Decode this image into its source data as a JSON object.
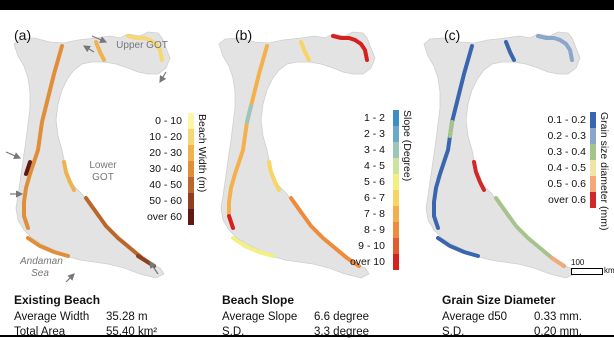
{
  "panels": [
    {
      "label": "(a)",
      "legend_title": "Beach Width (m)",
      "classes": [
        "0 - 10",
        "10 - 20",
        "20 - 30",
        "30 - 40",
        "40 - 50",
        "50 - 60",
        "over 60"
      ],
      "colors": [
        "#fdf6a8",
        "#f5d873",
        "#eeb24f",
        "#e08e3a",
        "#b9672a",
        "#8c4020",
        "#5e1a10"
      ],
      "stats_title": "Existing Beach",
      "stats": [
        {
          "key": "Average Width",
          "value": "35.28 m"
        },
        {
          "key": "Total Area",
          "value": "55.40 km²"
        }
      ],
      "map_labels": {
        "upper": "Upper GOT",
        "lower": "Lower GOT",
        "sea": "Andaman Sea"
      }
    },
    {
      "label": "(b)",
      "legend_title": "Slope (Degree)",
      "classes": [
        "1 - 2",
        "2 - 3",
        "3 - 4",
        "4 - 5",
        "5 - 6",
        "6 - 7",
        "7 - 8",
        "8 - 9",
        "9 - 10",
        "over 10"
      ],
      "colors": [
        "#3b8fc4",
        "#6aa9c7",
        "#9cc6b8",
        "#cde3a0",
        "#f3ef80",
        "#f8d463",
        "#f5b04e",
        "#ee8b3c",
        "#e35a2e",
        "#d62020"
      ],
      "stats_title": "Beach Slope",
      "stats": [
        {
          "key": "Average Slope",
          "value": "6.6 degree"
        },
        {
          "key": "S.D.",
          "value": "3.3 degree"
        }
      ]
    },
    {
      "label": "(c)",
      "legend_title": "Grain size diameter (mm)",
      "classes": [
        "0.1 - 0.2",
        "0.2 - 0.3",
        "0.3 - 0.4",
        "0.4 - 0.5",
        "0.5 - 0.6",
        "over 0.6"
      ],
      "colors": [
        "#3a66b0",
        "#8aa6cc",
        "#a7c38c",
        "#f0e4a8",
        "#f3a77a",
        "#d2282a"
      ],
      "stats_title": "Grain Size Diameter",
      "stats": [
        {
          "key": "Average d50",
          "value": "0.33 mm."
        },
        {
          "key": "S.D.",
          "value": "0.20 mm."
        }
      ]
    }
  ],
  "scale": {
    "value": "100",
    "unit": "km"
  }
}
